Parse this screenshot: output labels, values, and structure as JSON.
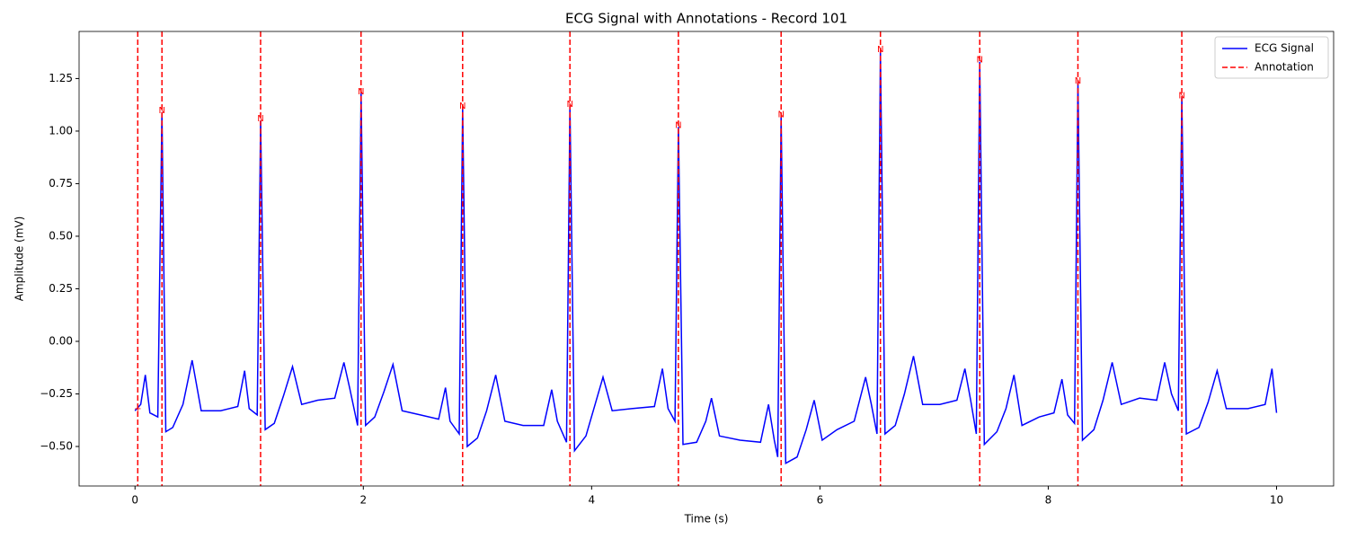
{
  "chart_data": {
    "type": "line",
    "title": "ECG Signal with Annotations - Record 101",
    "x_label": "Time (s)",
    "y_label": "Amplitude (mV)",
    "xlim": [
      -0.49,
      10.5
    ],
    "ylim": [
      -0.688,
      1.474
    ],
    "xticks": [
      0,
      2,
      4,
      6,
      8,
      10
    ],
    "yticks": [
      {
        "value": -0.5,
        "label": "−0.50"
      },
      {
        "value": -0.25,
        "label": "−0.25"
      },
      {
        "value": 0,
        "label": "0.00"
      },
      0.25,
      {
        "value": 0.5,
        "label": "0.50"
      },
      0.75,
      {
        "value": 1,
        "label": "1.00"
      },
      1.25
    ],
    "grid": false,
    "legend": "upper right",
    "series": [
      {
        "name": "ECG Signal",
        "color": "#0000ff",
        "x": [
          0.0,
          0.05,
          0.09,
          0.13,
          0.2,
          0.236,
          0.27,
          0.33,
          0.42,
          0.5,
          0.58,
          0.75,
          0.9,
          0.96,
          1.0,
          1.07,
          1.1,
          1.14,
          1.22,
          1.3,
          1.38,
          1.46,
          1.6,
          1.75,
          1.83,
          1.88,
          1.95,
          1.98,
          2.02,
          2.1,
          2.18,
          2.26,
          2.34,
          2.5,
          2.66,
          2.72,
          2.76,
          2.84,
          2.87,
          2.91,
          3.0,
          3.08,
          3.16,
          3.24,
          3.4,
          3.58,
          3.65,
          3.7,
          3.78,
          3.81,
          3.85,
          3.95,
          4.03,
          4.1,
          4.18,
          4.35,
          4.55,
          4.62,
          4.67,
          4.73,
          4.76,
          4.8,
          4.92,
          5.0,
          5.05,
          5.12,
          5.3,
          5.48,
          5.55,
          5.6,
          5.63,
          5.66,
          5.7,
          5.8,
          5.88,
          5.95,
          6.02,
          6.15,
          6.3,
          6.4,
          6.45,
          6.5,
          6.53,
          6.57,
          6.66,
          6.74,
          6.82,
          6.9,
          7.05,
          7.2,
          7.27,
          7.32,
          7.37,
          7.4,
          7.44,
          7.55,
          7.63,
          7.7,
          7.77,
          7.92,
          8.05,
          8.12,
          8.17,
          8.23,
          8.26,
          8.3,
          8.4,
          8.48,
          8.56,
          8.64,
          8.8,
          8.95,
          9.02,
          9.08,
          9.14,
          9.17,
          9.21,
          9.32,
          9.4,
          9.48,
          9.56,
          9.75,
          9.9,
          9.96,
          10.0
        ],
        "values": [
          -0.33,
          -0.3,
          -0.16,
          -0.34,
          -0.36,
          1.09,
          -0.43,
          -0.41,
          -0.3,
          -0.09,
          -0.33,
          -0.33,
          -0.31,
          -0.14,
          -0.32,
          -0.35,
          1.05,
          -0.42,
          -0.39,
          -0.26,
          -0.12,
          -0.3,
          -0.28,
          -0.27,
          -0.1,
          -0.22,
          -0.4,
          1.18,
          -0.4,
          -0.36,
          -0.24,
          -0.11,
          -0.33,
          -0.35,
          -0.37,
          -0.22,
          -0.38,
          -0.44,
          1.11,
          -0.5,
          -0.46,
          -0.33,
          -0.16,
          -0.38,
          -0.4,
          -0.4,
          -0.23,
          -0.38,
          -0.48,
          1.12,
          -0.52,
          -0.45,
          -0.3,
          -0.17,
          -0.33,
          -0.32,
          -0.31,
          -0.13,
          -0.32,
          -0.38,
          1.02,
          -0.49,
          -0.48,
          -0.38,
          -0.27,
          -0.45,
          -0.47,
          -0.48,
          -0.3,
          -0.47,
          -0.55,
          1.07,
          -0.58,
          -0.55,
          -0.42,
          -0.28,
          -0.47,
          -0.42,
          -0.38,
          -0.17,
          -0.3,
          -0.44,
          1.38,
          -0.44,
          -0.4,
          -0.25,
          -0.07,
          -0.3,
          -0.3,
          -0.28,
          -0.13,
          -0.28,
          -0.44,
          1.33,
          -0.49,
          -0.43,
          -0.32,
          -0.16,
          -0.4,
          -0.36,
          -0.34,
          -0.18,
          -0.35,
          -0.39,
          1.23,
          -0.47,
          -0.42,
          -0.28,
          -0.1,
          -0.3,
          -0.27,
          -0.28,
          -0.1,
          -0.25,
          -0.33,
          1.16,
          -0.44,
          -0.41,
          -0.29,
          -0.14,
          -0.32,
          -0.32,
          -0.3,
          -0.13,
          -0.34
        ]
      },
      {
        "name": "Annotation",
        "color": "#ff0000",
        "kind": "vline",
        "x": [
          0.024,
          0.236,
          1.1,
          1.98,
          2.87,
          3.81,
          4.76,
          5.66,
          6.53,
          7.4,
          8.26,
          9.17
        ],
        "values": [
          -0.33,
          1.09,
          1.05,
          1.18,
          1.11,
          1.12,
          1.02,
          1.07,
          1.38,
          1.33,
          1.23,
          1.16
        ],
        "labels": [
          "+",
          "N",
          "N",
          "N",
          "N",
          "N",
          "N",
          "N",
          "N",
          "N",
          "N",
          "N"
        ]
      }
    ]
  }
}
